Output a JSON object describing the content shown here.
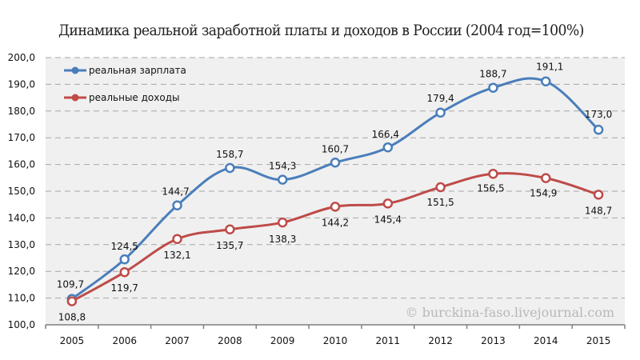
{
  "chart_data": {
    "type": "line",
    "title": "Динамика реальной заработной платы и доходов в России (2004 год=100%)",
    "xlabel": "",
    "ylabel": "",
    "categories": [
      "2005",
      "2006",
      "2007",
      "2008",
      "2009",
      "2010",
      "2011",
      "2012",
      "2013",
      "2014",
      "2015"
    ],
    "ylim": [
      100,
      200
    ],
    "yticks": [
      "100,0",
      "110,0",
      "120,0",
      "130,0",
      "140,0",
      "150,0",
      "160,0",
      "170,0",
      "180,0",
      "190,0",
      "200,0"
    ],
    "grid": true,
    "legend_position": "upper-left inside",
    "series": [
      {
        "name": "реальная зарплата",
        "color": "#4a7ebb",
        "values": [
          109.7,
          124.5,
          144.7,
          158.7,
          154.3,
          160.7,
          166.4,
          179.4,
          188.7,
          191.1,
          173.0
        ],
        "labels": [
          "109,7",
          "124,5",
          "144,7",
          "158,7",
          "154,3",
          "160,7",
          "166,4",
          "179,4",
          "188,7",
          "191,1",
          "173,0"
        ]
      },
      {
        "name": "реальные доходы",
        "color": "#be4b48",
        "values": [
          108.8,
          119.7,
          132.1,
          135.7,
          138.3,
          144.2,
          145.4,
          151.5,
          156.5,
          154.9,
          148.7
        ],
        "labels": [
          "108,8",
          "119,7",
          "132,1",
          "135,7",
          "138,3",
          "144,2",
          "145,4",
          "151,5",
          "156,5",
          "154,9",
          "148,7"
        ]
      }
    ],
    "annotation": "© burckina-faso.livejournal.com"
  },
  "colors": {
    "plot_bg": "#f0f0f0",
    "grid": "#a6a6a6",
    "axis": "#7f7f7f"
  }
}
